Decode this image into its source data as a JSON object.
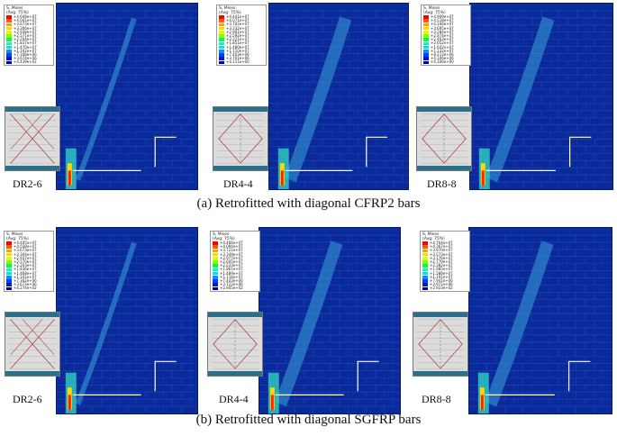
{
  "panels": [
    {
      "caption": "(a) Retrofitted with diagonal CFRP2 bars",
      "specimens": [
        {
          "label": "DR2-6",
          "legend_title": "S, Mises",
          "legend_avg": "(Avg: 75%)",
          "legend_values": [
            "+4.649e+07",
            "+4.041e+07",
            "+3.673e+07",
            "+3.306e+07",
            "+2.938e+07",
            "+2.571e+07",
            "+2.204e+07",
            "+1.837e+07",
            "+1.470e+07",
            "+1.102e+07",
            "+7.348e+06",
            "+3.674e+06",
            "+4.439e+02"
          ]
        },
        {
          "label": "DR4-4",
          "legend_title": "S, Mises",
          "legend_avg": "(Avg: 75%)",
          "legend_values": [
            "+4.441e+07",
            "+4.071e+07",
            "+3.702e+07",
            "+3.332e+07",
            "+2.961e+07",
            "+2.592e+07",
            "+2.221e+07",
            "+1.851e+07",
            "+1.480e+07",
            "+1.110e+07",
            "+7.403e+06",
            "+3.701e+06",
            "+4.111e+00"
          ]
        },
        {
          "label": "DR8-8",
          "legend_title": "S, Mises",
          "legend_avg": "(Avg: 75%)",
          "legend_values": [
            "+4.909e+07",
            "+4.518e+07",
            "+4.106e+07",
            "+3.695e+07",
            "+3.284e+07",
            "+2.874e+07",
            "+2.463e+07",
            "+2.052e+07",
            "+1.642e+07",
            "+1.232e+07",
            "+8.213e+06",
            "+4.106e+06",
            "+4.106e+00"
          ]
        }
      ]
    },
    {
      "caption": "(b) Retrofitted with diagonal SGFRP bars",
      "specimens": [
        {
          "label": "DR2-6",
          "legend_title": "S, Mises",
          "legend_avg": "(Avg: 75%)",
          "legend_values": [
            "+4.405e+07",
            "+4.038e+07",
            "+3.673e+07",
            "+3.304e+07",
            "+2.937e+07",
            "+2.570e+07",
            "+2.203e+07",
            "+1.836e+07",
            "+1.468e+07",
            "+1.101e+07",
            "+7.342e+06",
            "+3.673e+06",
            "+4.274e+02"
          ]
        },
        {
          "label": "DR4-4",
          "legend_title": "S, Mises",
          "legend_avg": "(Avg: 75%)",
          "legend_values": [
            "+4.466e+07",
            "+4.094e+07",
            "+3.721e+07",
            "+3.349e+07",
            "+2.977e+07",
            "+2.605e+07",
            "+2.233e+07",
            "+1.861e+07",
            "+1.489e+07",
            "+1.116e+07",
            "+7.443e+06",
            "+3.722e+06",
            "+2.905e+02"
          ]
        },
        {
          "label": "DR8-8",
          "legend_title": "S, Mises",
          "legend_avg": "(Avg: 75%)",
          "legend_values": [
            "+4.764e+07",
            "+4.367e+07",
            "+3.970e+07",
            "+3.573e+07",
            "+3.176e+07",
            "+2.779e+07",
            "+2.382e+07",
            "+1.985e+07",
            "+1.588e+07",
            "+1.191e+07",
            "+7.941e+06",
            "+3.971e+06",
            "+2.923e+02"
          ]
        }
      ]
    }
  ],
  "colors": {
    "contour_scale": [
      "#ff0000",
      "#ff5a00",
      "#ffa000",
      "#ffd800",
      "#d8ff00",
      "#7fff00",
      "#00ff40",
      "#00ffb0",
      "#00e0ff",
      "#0090ff",
      "#0040ff",
      "#0018d0",
      "#0000a0"
    ],
    "mesh_base": "#0a2a9a",
    "cap": "#2a6f8c"
  },
  "icons": [
    "stress-legend-icon",
    "wall-thumbnail-icon"
  ]
}
